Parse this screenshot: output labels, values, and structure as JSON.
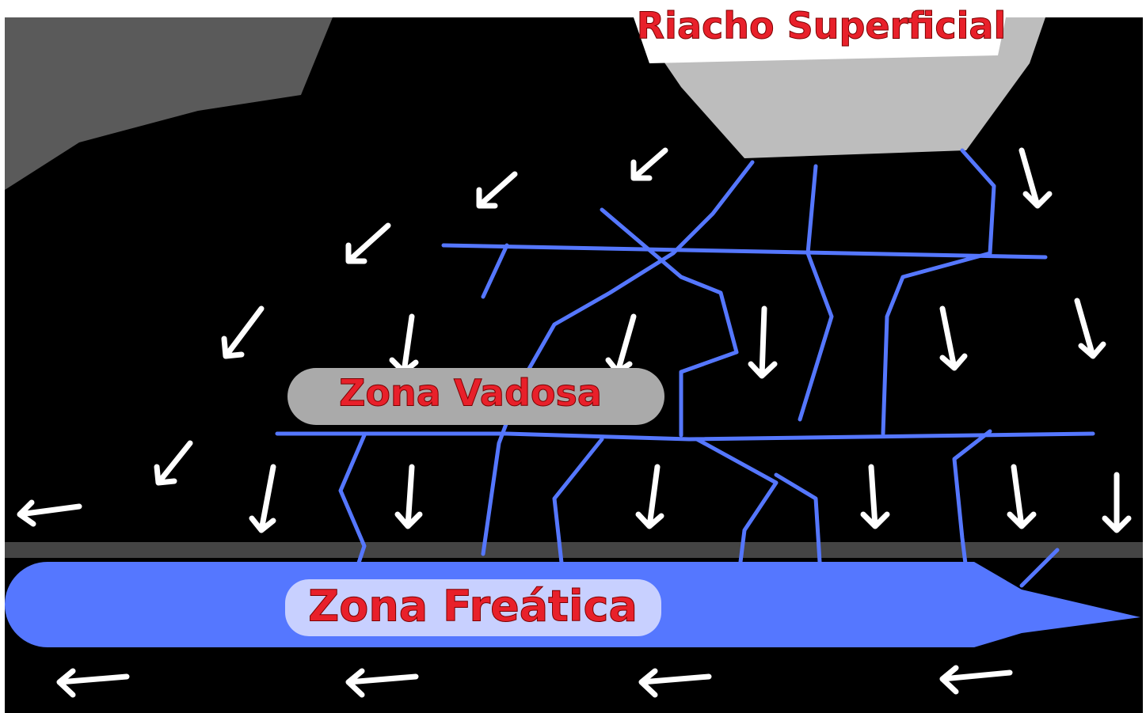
{
  "labels": {
    "stream": "Riacho Superficial",
    "vadose": "Zona Vadosa",
    "phreatic": "Zona Freática"
  }
}
